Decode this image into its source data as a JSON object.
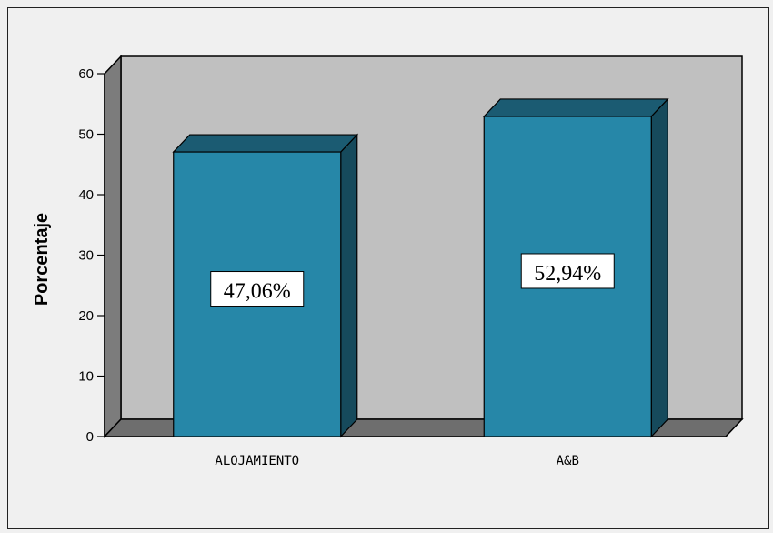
{
  "chart_data": {
    "type": "bar",
    "categories": [
      "ALOJAMIENTO",
      "A&B"
    ],
    "values": [
      47.06,
      52.94
    ],
    "data_labels": [
      "47,06%",
      "52,94%"
    ],
    "xlabel": "",
    "ylabel": "Porcentaje",
    "ylim": [
      0,
      60
    ],
    "yticks": [
      0,
      10,
      20,
      30,
      40,
      50,
      60
    ],
    "grid": false,
    "style": "3d",
    "colors": {
      "bar_front": "#2687a8",
      "bar_top": "#1b5b72",
      "bar_side": "#164a5c",
      "wall": "#c0c0c0",
      "wall_left": "#7c7c7c",
      "floor": "#6e6e6e",
      "background": "#f0f0f0"
    }
  }
}
